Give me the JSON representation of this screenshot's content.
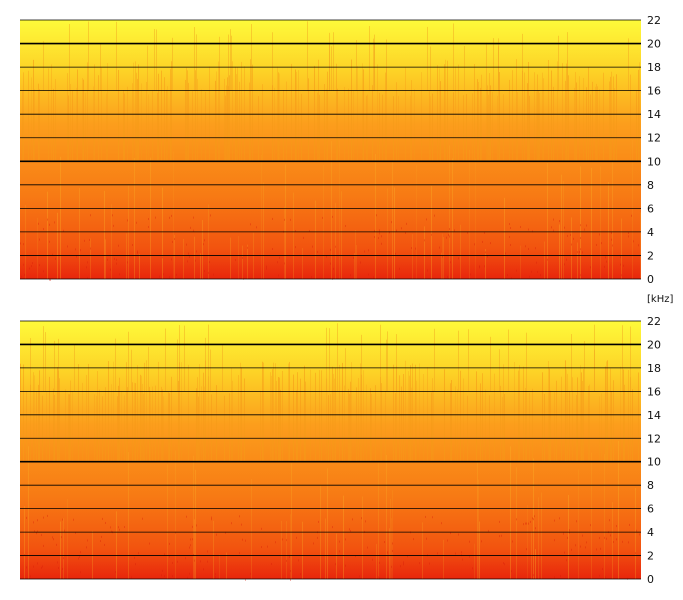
{
  "chart_data": [
    {
      "type": "heatmap",
      "channel": "top",
      "y_unit_label": "",
      "ylim": [
        0,
        22
      ],
      "y_ticks": [
        0,
        2,
        4,
        6,
        8,
        10,
        12,
        14,
        16,
        18,
        20,
        22
      ],
      "major_gridlines": [
        10,
        20
      ],
      "colormap": [
        "#e8260c",
        "#f2540f",
        "#f77a14",
        "#fc9e1c",
        "#fdd226",
        "#fefa3a"
      ]
    },
    {
      "type": "heatmap",
      "channel": "bottom",
      "y_unit_label": "[kHz]",
      "ylim": [
        0,
        22
      ],
      "y_ticks": [
        0,
        2,
        4,
        6,
        8,
        10,
        12,
        14,
        16,
        18,
        20,
        22
      ],
      "major_gridlines": [
        10,
        20
      ],
      "colormap": [
        "#e8260c",
        "#f2540f",
        "#f77a14",
        "#fc9e1c",
        "#fdd226",
        "#fefa3a"
      ]
    }
  ]
}
